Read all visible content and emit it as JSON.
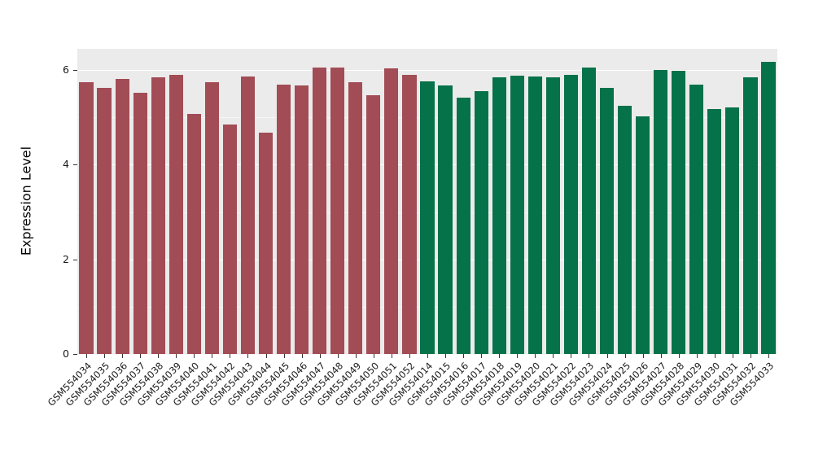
{
  "chart_data": {
    "type": "bar",
    "title": "",
    "xlabel": "",
    "ylabel": "Expression Level",
    "ylim": [
      0,
      6.45
    ],
    "yticks_major": [
      0,
      2,
      4,
      6
    ],
    "yticks_minor": [
      1,
      3,
      5
    ],
    "grid": "on",
    "legend": "none",
    "panel_background": "#EBEBEB",
    "grid_color": "#FFFFFF",
    "categories": [
      "GSM554034",
      "GSM554035",
      "GSM554036",
      "GSM554037",
      "GSM554038",
      "GSM554039",
      "GSM554040",
      "GSM554041",
      "GSM554042",
      "GSM554043",
      "GSM554044",
      "GSM554045",
      "GSM554046",
      "GSM554047",
      "GSM554048",
      "GSM554049",
      "GSM554050",
      "GSM554051",
      "GSM554052",
      "GSM554014",
      "GSM554015",
      "GSM554016",
      "GSM554017",
      "GSM554018",
      "GSM554019",
      "GSM554020",
      "GSM554021",
      "GSM554022",
      "GSM554023",
      "GSM554024",
      "GSM554025",
      "GSM554026",
      "GSM554027",
      "GSM554028",
      "GSM554029",
      "GSM554030",
      "GSM554031",
      "GSM554032",
      "GSM554033"
    ],
    "values": [
      5.75,
      5.63,
      5.82,
      5.52,
      5.85,
      5.9,
      5.08,
      5.75,
      4.85,
      5.87,
      4.68,
      5.7,
      5.68,
      6.05,
      6.05,
      5.75,
      5.47,
      6.03,
      5.9,
      5.77,
      5.68,
      5.42,
      5.55,
      5.85,
      5.88,
      5.87,
      5.85,
      5.9,
      6.05,
      5.63,
      5.25,
      5.02,
      6.0,
      5.98,
      5.7,
      5.18,
      5.22,
      5.85,
      6.18
    ],
    "groups": [
      {
        "name": "GSM554034-GSM554052",
        "color": "#A24C56"
      },
      {
        "name": "GSM554014-GSM554033",
        "color": "#067249"
      }
    ],
    "group_of_bar": [
      0,
      0,
      0,
      0,
      0,
      0,
      0,
      0,
      0,
      0,
      0,
      0,
      0,
      0,
      0,
      0,
      0,
      0,
      0,
      1,
      1,
      1,
      1,
      1,
      1,
      1,
      1,
      1,
      1,
      1,
      1,
      1,
      1,
      1,
      1,
      1,
      1,
      1,
      1
    ]
  }
}
